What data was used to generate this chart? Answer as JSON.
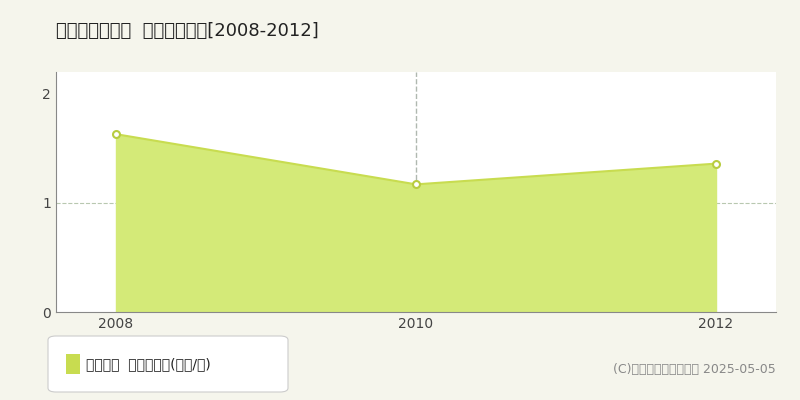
{
  "title": "五所川原市太田  土地価格推移[2008-2012]",
  "years": [
    2008,
    2010,
    2012
  ],
  "values": [
    1.63,
    1.17,
    1.36
  ],
  "xlim": [
    2007.6,
    2012.4
  ],
  "ylim": [
    0,
    2.2
  ],
  "yticks": [
    0,
    1,
    2
  ],
  "xticks": [
    2008,
    2010,
    2012
  ],
  "line_color": "#c8dc50",
  "fill_color": "#d4ea78",
  "marker_color": "#ffffff",
  "marker_edge_color": "#b8cc40",
  "dashed_line_x": 2010,
  "dashed_line_color": "#b0b8b0",
  "grid_y_value": 1,
  "grid_color": "#b8c8b0",
  "bg_color": "#f5f5ec",
  "plot_bg_color": "#ffffff",
  "legend_label": "土地価格  平均坪単価(万円/坪)",
  "legend_marker_color": "#c8dc50",
  "copyright_text": "(C)土地価格ドットコム 2025-05-05",
  "title_fontsize": 13,
  "tick_fontsize": 10,
  "legend_fontsize": 10,
  "copyright_fontsize": 9,
  "spine_color": "#888888"
}
